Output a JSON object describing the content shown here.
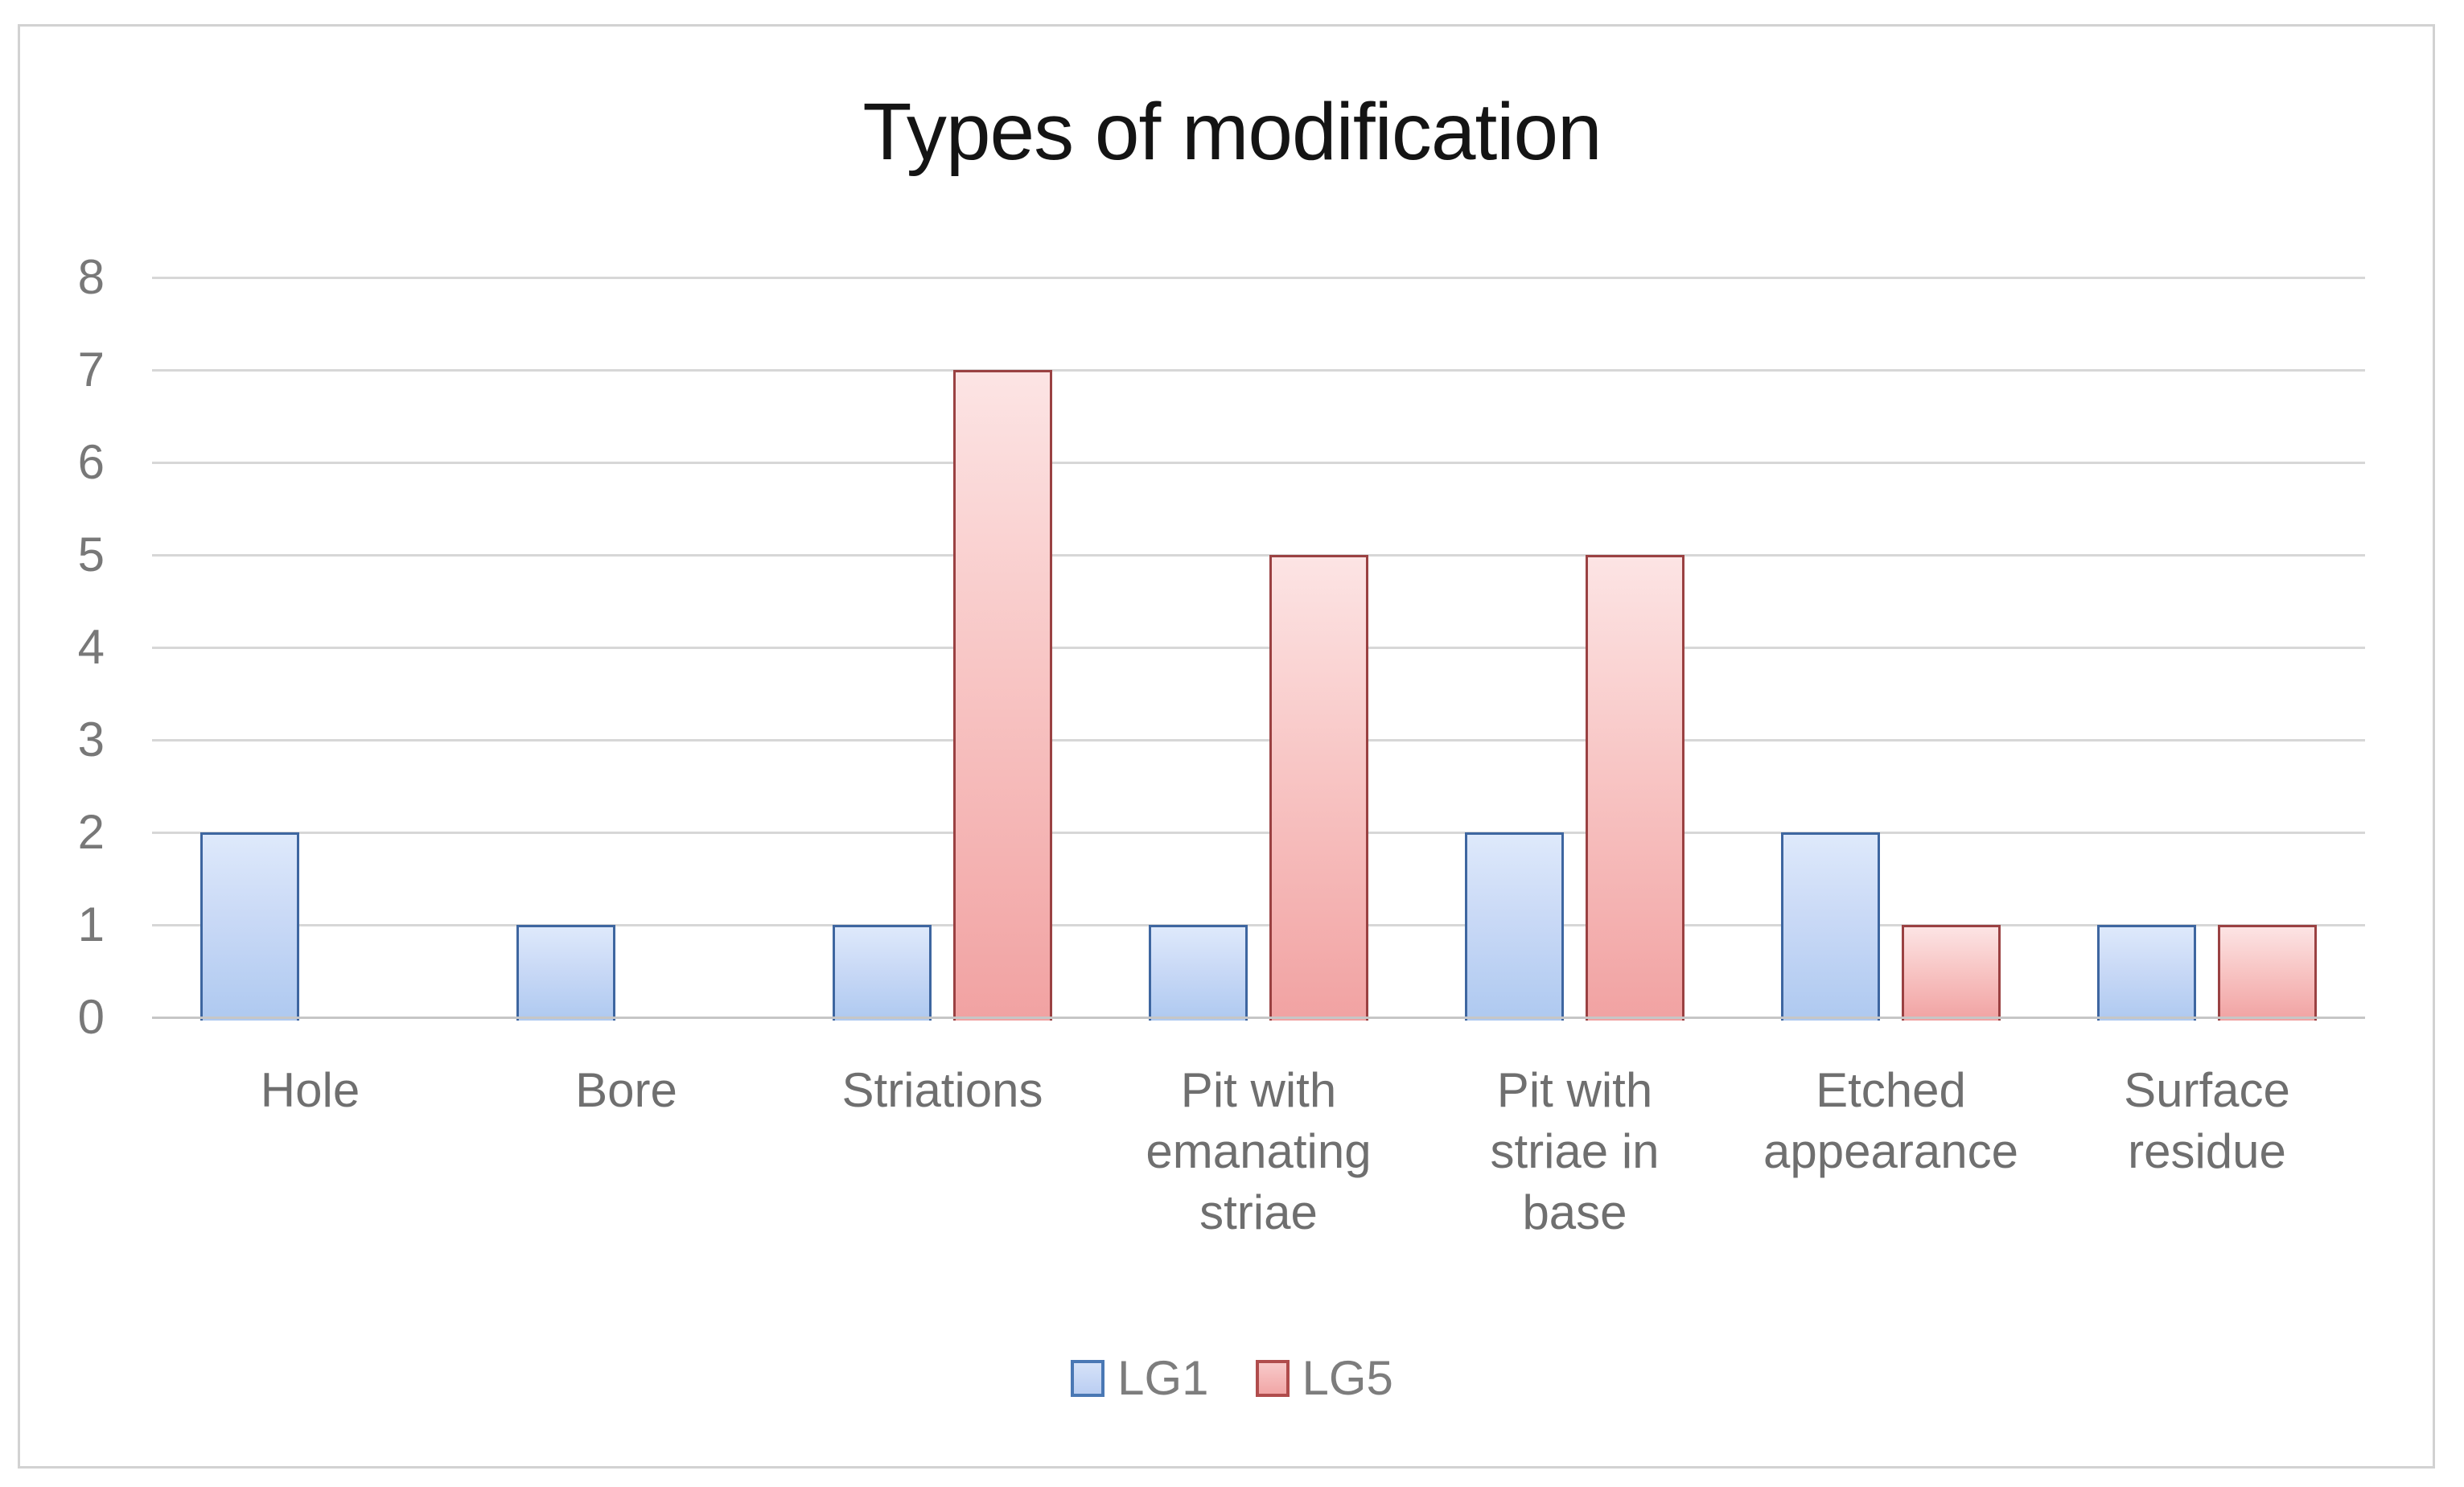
{
  "chart_data": {
    "type": "bar",
    "title": "Types of modification",
    "categories": [
      "Hole",
      "Bore",
      "Striations",
      "Pit with\nemanating\nstriae",
      "Pit with\nstriae in\nbase",
      "Etched\nappearance",
      "Surface\nresidue"
    ],
    "series": [
      {
        "name": "LG1",
        "values": [
          2,
          1,
          1,
          1,
          2,
          2,
          1
        ]
      },
      {
        "name": "LG5",
        "values": [
          0,
          0,
          7,
          5,
          5,
          1,
          1
        ]
      }
    ],
    "xlabel": "",
    "ylabel": "",
    "ylim": [
      0,
      8
    ],
    "yticks": [
      0,
      1,
      2,
      3,
      4,
      5,
      6,
      7,
      8
    ],
    "grid": true,
    "legend_position": "bottom",
    "colors": {
      "lg1_fill_top": "#dee9fb",
      "lg1_fill_bottom": "#aec9f0",
      "lg1_border": "#3e66a0",
      "lg5_fill_top": "#fce4e4",
      "lg5_fill_bottom": "#f1a2a2",
      "lg5_border": "#9a4142",
      "gridline": "#d7d7d7",
      "axis_line": "#c6c6c6",
      "tick_label": "#787878",
      "category_label": "#6f6f6f",
      "title": "#141414",
      "frame_border": "#d2d2d2"
    }
  }
}
